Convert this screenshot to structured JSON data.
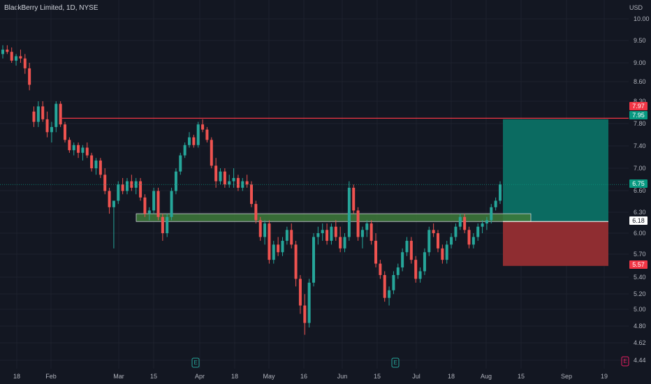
{
  "header": {
    "title": "BlackBerry Limited, 1D, NYSE",
    "currency": "USD"
  },
  "chart_data": {
    "type": "candlestick",
    "ylim": [
      4.4,
      10.2
    ],
    "y_ticks": [
      "10.00",
      "9.50",
      "9.00",
      "8.60",
      "8.30",
      "7.80",
      "7.40",
      "7.00",
      "6.60",
      "6.30",
      "6.00",
      "5.70",
      "5.40",
      "5.20",
      "5.00",
      "4.80",
      "4.62",
      "4.44"
    ],
    "x_ticks": [
      "18",
      "Feb",
      "Mar",
      "15",
      "Apr",
      "18",
      "May",
      "16",
      "Jun",
      "15",
      "Jul",
      "18",
      "Aug",
      "15",
      "Sep",
      "19"
    ],
    "price_tags": [
      {
        "label": "7.97",
        "value": 7.97,
        "color": "#f23645"
      },
      {
        "label": "7.95",
        "value": 7.95,
        "color": "#089981"
      },
      {
        "label": "6.75",
        "value": 6.75,
        "color": "#089981"
      },
      {
        "label": "6.18",
        "value": 6.18,
        "color": "#ffffff"
      },
      {
        "label": "5.57",
        "value": 5.57,
        "color": "#f23645"
      }
    ],
    "resistance_line": 7.97,
    "support_zone": [
      6.18,
      6.3
    ],
    "position": {
      "entry": 6.18,
      "target": 7.95,
      "stop": 5.57
    },
    "events": [
      "E",
      "E",
      "E"
    ],
    "candles": [
      [
        9.2,
        9.4,
        9.1,
        9.3
      ],
      [
        9.3,
        9.4,
        9.2,
        9.25
      ],
      [
        9.25,
        9.35,
        9.0,
        9.05
      ],
      [
        9.05,
        9.2,
        8.95,
        9.15
      ],
      [
        9.15,
        9.3,
        9.0,
        9.1
      ],
      [
        9.1,
        9.2,
        8.8,
        8.9
      ],
      [
        8.9,
        9.0,
        8.5,
        8.6
      ],
      [
        8.1,
        8.2,
        7.8,
        7.9
      ],
      [
        7.9,
        8.3,
        7.8,
        8.2
      ],
      [
        8.2,
        8.3,
        7.9,
        7.95
      ],
      [
        7.95,
        8.1,
        7.6,
        7.7
      ],
      [
        7.7,
        7.9,
        7.5,
        7.8
      ],
      [
        7.8,
        8.3,
        7.7,
        8.25
      ],
      [
        8.25,
        8.3,
        7.8,
        7.85
      ],
      [
        7.85,
        7.9,
        7.5,
        7.55
      ],
      [
        7.55,
        7.6,
        7.3,
        7.35
      ],
      [
        7.35,
        7.5,
        7.25,
        7.45
      ],
      [
        7.45,
        7.5,
        7.2,
        7.3
      ],
      [
        7.3,
        7.45,
        7.15,
        7.4
      ],
      [
        7.4,
        7.5,
        7.2,
        7.25
      ],
      [
        7.25,
        7.3,
        6.95,
        7.0
      ],
      [
        7.0,
        7.2,
        6.9,
        7.15
      ],
      [
        7.15,
        7.2,
        6.85,
        6.9
      ],
      [
        6.9,
        7.0,
        6.6,
        6.65
      ],
      [
        6.65,
        6.7,
        6.3,
        6.4
      ],
      [
        6.4,
        6.5,
        5.8,
        6.5
      ],
      [
        6.5,
        6.8,
        6.45,
        6.75
      ],
      [
        6.75,
        6.85,
        6.6,
        6.65
      ],
      [
        6.65,
        6.85,
        6.6,
        6.8
      ],
      [
        6.8,
        6.9,
        6.65,
        6.7
      ],
      [
        6.7,
        6.85,
        6.6,
        6.8
      ],
      [
        6.8,
        6.85,
        6.5,
        6.55
      ],
      [
        6.55,
        6.6,
        6.25,
        6.3
      ],
      [
        6.3,
        6.4,
        6.2,
        6.35
      ],
      [
        6.35,
        6.7,
        6.3,
        6.65
      ],
      [
        6.65,
        6.7,
        6.2,
        6.25
      ],
      [
        6.25,
        6.3,
        5.9,
        6.0
      ],
      [
        6.0,
        6.3,
        5.95,
        6.25
      ],
      [
        6.25,
        6.7,
        6.2,
        6.65
      ],
      [
        6.65,
        7.0,
        6.6,
        6.95
      ],
      [
        6.95,
        7.3,
        6.9,
        7.25
      ],
      [
        7.25,
        7.5,
        7.2,
        7.45
      ],
      [
        7.45,
        7.7,
        7.4,
        7.6
      ],
      [
        7.6,
        7.65,
        7.4,
        7.45
      ],
      [
        7.45,
        7.9,
        7.4,
        7.85
      ],
      [
        7.85,
        7.95,
        7.7,
        7.75
      ],
      [
        7.75,
        7.8,
        7.5,
        7.55
      ],
      [
        7.55,
        7.6,
        7.0,
        7.05
      ],
      [
        7.05,
        7.2,
        6.7,
        6.8
      ],
      [
        6.8,
        7.0,
        6.75,
        6.95
      ],
      [
        6.95,
        7.0,
        6.7,
        6.75
      ],
      [
        6.75,
        6.9,
        6.7,
        6.8
      ],
      [
        6.8,
        7.0,
        6.7,
        6.85
      ],
      [
        6.85,
        6.9,
        6.65,
        6.7
      ],
      [
        6.7,
        6.85,
        6.65,
        6.8
      ],
      [
        6.8,
        6.9,
        6.7,
        6.75
      ],
      [
        6.75,
        6.8,
        6.4,
        6.45
      ],
      [
        6.45,
        6.5,
        6.15,
        6.2
      ],
      [
        6.2,
        6.25,
        5.9,
        5.95
      ],
      [
        5.95,
        6.2,
        5.85,
        6.15
      ],
      [
        6.15,
        6.2,
        5.6,
        5.65
      ],
      [
        5.65,
        5.9,
        5.6,
        5.85
      ],
      [
        5.85,
        5.95,
        5.7,
        5.75
      ],
      [
        5.75,
        5.95,
        5.7,
        5.9
      ],
      [
        5.9,
        6.1,
        5.85,
        6.05
      ],
      [
        6.05,
        6.15,
        5.8,
        5.85
      ],
      [
        5.85,
        5.9,
        5.3,
        5.4
      ],
      [
        5.4,
        5.45,
        4.95,
        5.05
      ],
      [
        5.05,
        5.2,
        4.72,
        4.85
      ],
      [
        4.85,
        5.4,
        4.8,
        5.35
      ],
      [
        5.35,
        6.0,
        5.3,
        5.95
      ],
      [
        5.95,
        6.1,
        5.85,
        6.0
      ],
      [
        6.0,
        6.15,
        5.9,
        6.05
      ],
      [
        6.05,
        6.15,
        5.85,
        5.9
      ],
      [
        5.9,
        6.15,
        5.85,
        6.1
      ],
      [
        6.1,
        6.2,
        5.9,
        5.95
      ],
      [
        5.95,
        6.1,
        5.75,
        5.8
      ],
      [
        5.8,
        6.0,
        5.75,
        5.95
      ],
      [
        5.95,
        6.8,
        5.9,
        6.7
      ],
      [
        6.7,
        6.75,
        6.3,
        6.35
      ],
      [
        6.35,
        6.4,
        5.9,
        5.95
      ],
      [
        5.95,
        6.1,
        5.8,
        6.05
      ],
      [
        6.05,
        6.2,
        5.95,
        6.15
      ],
      [
        6.15,
        6.2,
        5.85,
        5.9
      ],
      [
        5.9,
        6.0,
        5.55,
        5.6
      ],
      [
        5.6,
        5.65,
        5.4,
        5.45
      ],
      [
        5.45,
        5.5,
        5.1,
        5.15
      ],
      [
        5.15,
        5.3,
        5.05,
        5.25
      ],
      [
        5.25,
        5.5,
        5.2,
        5.45
      ],
      [
        5.45,
        5.6,
        5.4,
        5.55
      ],
      [
        5.55,
        5.8,
        5.5,
        5.75
      ],
      [
        5.75,
        5.95,
        5.7,
        5.9
      ],
      [
        5.9,
        5.95,
        5.6,
        5.65
      ],
      [
        5.65,
        5.7,
        5.35,
        5.4
      ],
      [
        5.4,
        5.55,
        5.35,
        5.5
      ],
      [
        5.5,
        5.8,
        5.45,
        5.75
      ],
      [
        5.75,
        6.1,
        5.7,
        6.05
      ],
      [
        6.05,
        6.15,
        5.95,
        6.0
      ],
      [
        6.0,
        6.05,
        5.75,
        5.8
      ],
      [
        5.8,
        5.85,
        5.6,
        5.65
      ],
      [
        5.65,
        5.9,
        5.6,
        5.85
      ],
      [
        5.85,
        6.0,
        5.8,
        5.95
      ],
      [
        5.95,
        6.15,
        5.9,
        6.1
      ],
      [
        6.1,
        6.3,
        6.05,
        6.25
      ],
      [
        6.25,
        6.3,
        6.0,
        6.05
      ],
      [
        6.05,
        6.1,
        5.8,
        5.85
      ],
      [
        5.85,
        6.0,
        5.8,
        5.95
      ],
      [
        5.95,
        6.15,
        5.9,
        6.1
      ],
      [
        6.1,
        6.2,
        6.0,
        6.15
      ],
      [
        6.15,
        6.25,
        6.05,
        6.2
      ],
      [
        6.2,
        6.45,
        6.15,
        6.4
      ],
      [
        6.4,
        6.55,
        6.35,
        6.5
      ],
      [
        6.5,
        6.8,
        6.45,
        6.75
      ]
    ]
  }
}
